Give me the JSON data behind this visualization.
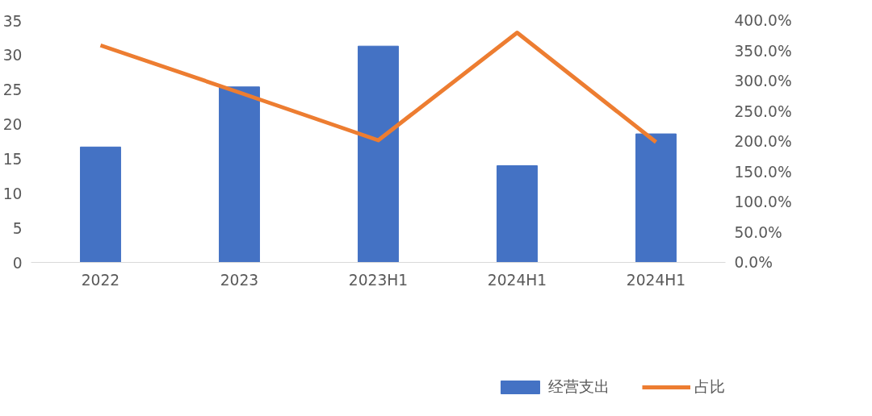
{
  "chart_data": {
    "type": "bar",
    "categories": [
      "2022",
      "2023",
      "2023H1",
      "2024H1",
      "2024H1"
    ],
    "series": [
      {
        "name": "经营支出",
        "color": "#4472c4",
        "values": [
          16.7,
          25.4,
          31.3,
          14.0,
          18.6
        ]
      },
      {
        "name": "占比",
        "type": "line",
        "axis": "y2",
        "color": "#ed7d31",
        "values": [
          359,
          281,
          202,
          380,
          199
        ]
      }
    ],
    "ylim": [
      0,
      35
    ],
    "yticks": [
      0,
      5,
      10,
      15,
      20,
      25,
      30,
      35
    ],
    "y2lim": [
      0,
      400
    ],
    "y2ticks": [
      {
        "value": 0,
        "label": "0.0%"
      },
      {
        "value": 50,
        "label": "50.0%"
      },
      {
        "value": 100,
        "label": "100.0%"
      },
      {
        "value": 150,
        "label": "150.0%"
      },
      {
        "value": 200,
        "label": "200.0%"
      },
      {
        "value": 250,
        "label": "250.0%"
      },
      {
        "value": 300,
        "label": "300.0%"
      },
      {
        "value": 350,
        "label": "350.0%"
      },
      {
        "value": 400,
        "label": "400.0%"
      }
    ],
    "grid": false,
    "legend": "bottom",
    "marker": "none",
    "line_style": "solid"
  }
}
